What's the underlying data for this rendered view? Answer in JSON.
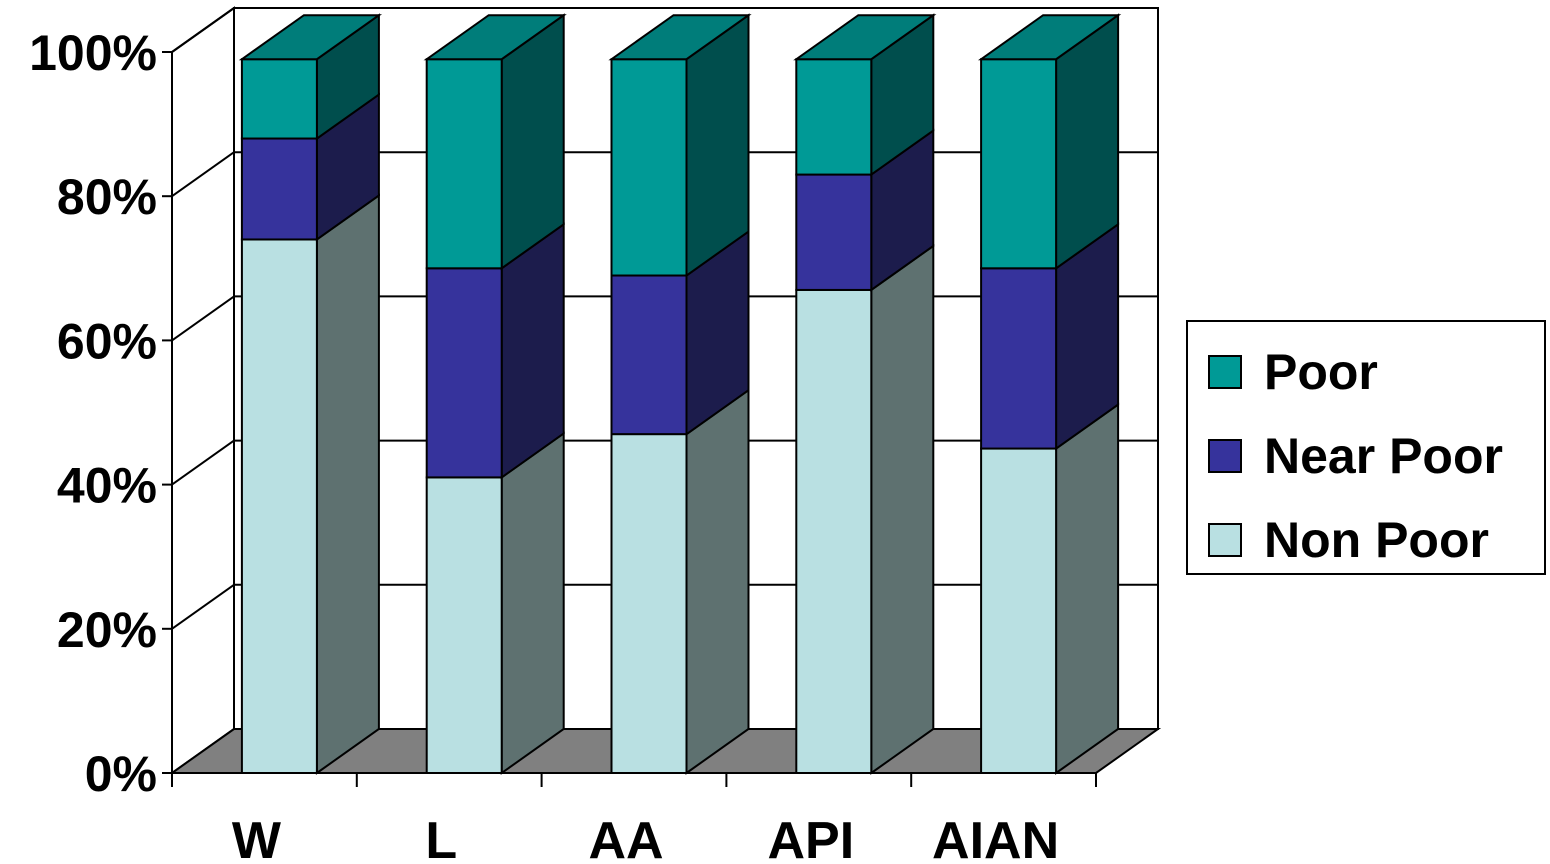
{
  "chart_data": {
    "type": "bar",
    "stacked": true,
    "three_d": true,
    "categories": [
      "W",
      "L",
      "AA",
      "API",
      "AIAN"
    ],
    "series": [
      {
        "name": "Non Poor",
        "values": [
          74,
          41,
          47,
          67,
          45
        ],
        "color": "#b9e0e2",
        "side_color": "#5e7170"
      },
      {
        "name": "Near Poor",
        "values": [
          14,
          29,
          22,
          16,
          25
        ],
        "color": "#36339c",
        "side_color": "#1c1c4c"
      },
      {
        "name": "Poor",
        "values": [
          11,
          29,
          30,
          16,
          29
        ],
        "color": "#009a96",
        "side_color": "#004e4d"
      }
    ],
    "ylim": [
      0,
      100
    ],
    "yticks": [
      "0%",
      "20%",
      "40%",
      "60%",
      "80%",
      "100%"
    ],
    "grid": true,
    "legend_position": "right",
    "floor_color": "#808080"
  },
  "legend": {
    "items": [
      {
        "label": "Poor",
        "color": "#009a96"
      },
      {
        "label": "Near Poor",
        "color": "#36339c"
      },
      {
        "label": "Non Poor",
        "color": "#b9e0e2"
      }
    ]
  }
}
